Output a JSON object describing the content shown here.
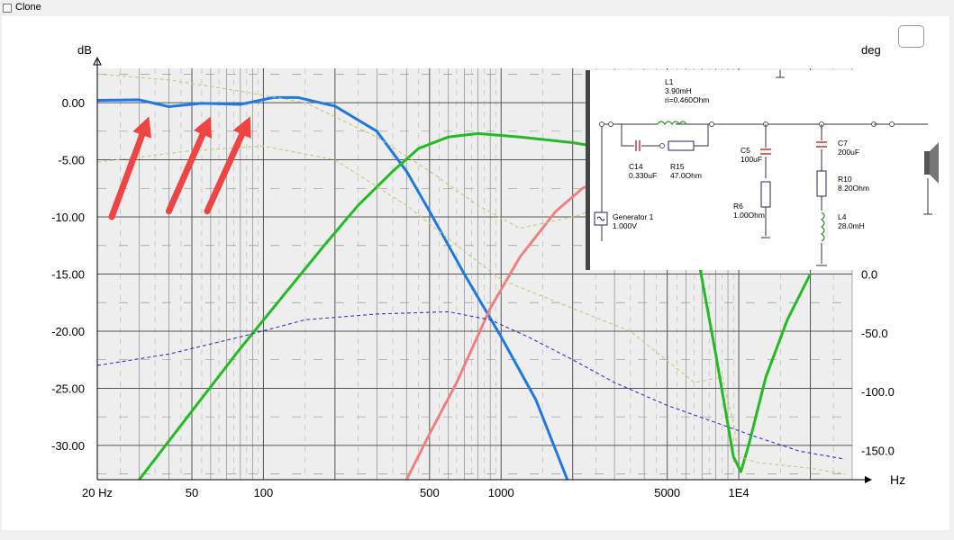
{
  "topbar": {
    "clone_label": "Clone",
    "clone_checked": false
  },
  "chart_data": {
    "type": "line",
    "xscale": "log",
    "xlim": [
      20,
      30000
    ],
    "ylim": [
      -33,
      3
    ],
    "y2lim": [
      -175,
      175
    ],
    "xlabel": "Hz",
    "ylabel": "dB",
    "y2label": "deg",
    "xticks": [
      {
        "v": 20,
        "label": "20 Hz"
      },
      {
        "v": 50,
        "label": "50"
      },
      {
        "v": 100,
        "label": "100"
      },
      {
        "v": 500,
        "label": "500"
      },
      {
        "v": 1000,
        "label": "1000"
      },
      {
        "v": 5000,
        "label": "5000"
      },
      {
        "v": 10000,
        "label": "1E4"
      }
    ],
    "yticks": [
      {
        "v": 0,
        "label": "0.00"
      },
      {
        "v": -5,
        "label": "-5.00"
      },
      {
        "v": -10,
        "label": "-10.00"
      },
      {
        "v": -15,
        "label": "-15.00"
      },
      {
        "v": -20,
        "label": "-20.00"
      },
      {
        "v": -25,
        "label": "-25.00"
      },
      {
        "v": -30,
        "label": "-30.00"
      }
    ],
    "y2ticks": [
      {
        "v": 0,
        "label": "0.0"
      },
      {
        "v": -50,
        "label": "-50.0"
      },
      {
        "v": -100,
        "label": "-100.0"
      },
      {
        "v": -150,
        "label": "-150.0"
      }
    ],
    "series": [
      {
        "color": "#1e78e6",
        "style": "solid",
        "points": [
          [
            20,
            0.2
          ],
          [
            30,
            0.25
          ],
          [
            40,
            -0.35
          ],
          [
            55,
            -0.05
          ],
          [
            80,
            -0.15
          ],
          [
            110,
            0.45
          ],
          [
            140,
            0.45
          ],
          [
            200,
            -0.3
          ],
          [
            300,
            -2.5
          ],
          [
            400,
            -6
          ],
          [
            500,
            -9.5
          ],
          [
            700,
            -15
          ],
          [
            1000,
            -20.5
          ],
          [
            1400,
            -26
          ],
          [
            1900,
            -33
          ]
        ]
      },
      {
        "color": "#22bb22",
        "style": "solid",
        "points": [
          [
            30,
            -33
          ],
          [
            50,
            -27
          ],
          [
            80,
            -21.5
          ],
          [
            120,
            -17
          ],
          [
            180,
            -12.5
          ],
          [
            250,
            -9
          ],
          [
            350,
            -6
          ],
          [
            450,
            -4
          ],
          [
            600,
            -3
          ],
          [
            800,
            -2.7
          ],
          [
            1200,
            -3
          ],
          [
            2000,
            -3.5
          ],
          [
            2800,
            -4
          ]
        ]
      },
      {
        "color": "#22bb22",
        "style": "solid",
        "points": [
          [
            6800,
            -14
          ],
          [
            8000,
            -22
          ],
          [
            9500,
            -31
          ],
          [
            10200,
            -32.3
          ],
          [
            11000,
            -30
          ],
          [
            13000,
            -24
          ],
          [
            16000,
            -19
          ],
          [
            20000,
            -15
          ]
        ]
      },
      {
        "color": "#f08080",
        "style": "solid",
        "points": [
          [
            400,
            -33
          ],
          [
            500,
            -29
          ],
          [
            650,
            -24.5
          ],
          [
            900,
            -18
          ],
          [
            1200,
            -13.5
          ],
          [
            1700,
            -9.5
          ],
          [
            2200,
            -7.5
          ],
          [
            2800,
            -6.5
          ]
        ]
      },
      {
        "color": "#3333cc",
        "style": "dashed",
        "points": [
          [
            20,
            -23
          ],
          [
            40,
            -22
          ],
          [
            80,
            -20.5
          ],
          [
            150,
            -19
          ],
          [
            300,
            -18.5
          ],
          [
            600,
            -18.3
          ],
          [
            900,
            -19
          ],
          [
            1300,
            -20.5
          ],
          [
            2000,
            -22.5
          ],
          [
            3000,
            -24.5
          ],
          [
            5000,
            -26.5
          ],
          [
            8000,
            -28
          ],
          [
            12000,
            -29.3
          ],
          [
            18000,
            -30.5
          ],
          [
            28000,
            -31.2
          ]
        ]
      },
      {
        "color": "#c8c878",
        "style": "dashed",
        "points": [
          [
            20,
            2.5
          ],
          [
            40,
            2
          ],
          [
            80,
            1
          ],
          [
            150,
            0
          ],
          [
            300,
            -3
          ],
          [
            500,
            -6
          ],
          [
            800,
            -9
          ],
          [
            1200,
            -11
          ],
          [
            2000,
            -10
          ],
          [
            2800,
            -9
          ]
        ]
      },
      {
        "color": "#c8c878",
        "style": "dashed",
        "points": [
          [
            20,
            -5.2
          ],
          [
            50,
            -4.2
          ],
          [
            100,
            -3.8
          ],
          [
            200,
            -5
          ],
          [
            400,
            -9
          ],
          [
            700,
            -13
          ],
          [
            1000,
            -15.5
          ],
          [
            2000,
            -18
          ],
          [
            3500,
            -20
          ],
          [
            6500,
            -24.5
          ],
          [
            8500,
            -24
          ],
          [
            9500,
            -28
          ],
          [
            10000,
            -31
          ],
          [
            12000,
            -31.5
          ],
          [
            20000,
            -32
          ],
          [
            28000,
            -32.5
          ]
        ]
      }
    ],
    "annotations": [
      {
        "type": "arrow",
        "color": "#ee4444",
        "from": [
          23,
          -10
        ],
        "to": [
          33,
          -1.2
        ]
      },
      {
        "type": "arrow",
        "color": "#ee4444",
        "from": [
          40,
          -9.5
        ],
        "to": [
          60,
          -1.2
        ]
      },
      {
        "type": "arrow",
        "color": "#ee4444",
        "from": [
          58,
          -9.5
        ],
        "to": [
          88,
          -1.2
        ]
      }
    ]
  },
  "schematic": {
    "title": "",
    "components": [
      {
        "id": "L1",
        "text": [
          "L1",
          "3.90mH",
          "ri=0.460Ohm"
        ]
      },
      {
        "id": "C14",
        "text": [
          "C14",
          "0.330uF"
        ]
      },
      {
        "id": "R15",
        "text": [
          "R15",
          "47.0Ohm"
        ]
      },
      {
        "id": "C5",
        "text": [
          "C5",
          "100uF"
        ]
      },
      {
        "id": "R6",
        "text": [
          "R6",
          "1.00Ohm"
        ]
      },
      {
        "id": "C7",
        "text": [
          "C7",
          "200uF"
        ]
      },
      {
        "id": "R10",
        "text": [
          "R10",
          "8.20Ohm"
        ]
      },
      {
        "id": "L4",
        "text": [
          "L4",
          "28.0mH"
        ]
      },
      {
        "id": "GEN",
        "text": [
          "Generator 1",
          "1.000V"
        ]
      }
    ]
  }
}
